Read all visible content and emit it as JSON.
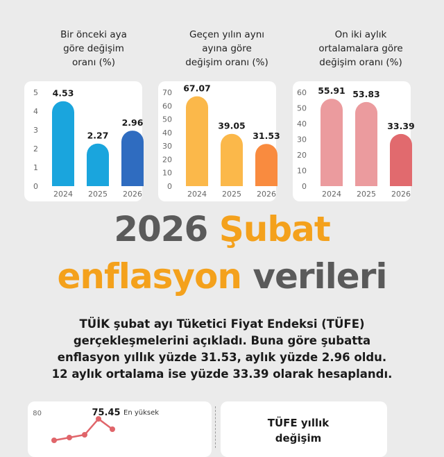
{
  "chart_data": [
    {
      "type": "bar",
      "title": "Bir önceki aya göre değişim oranı (%)",
      "title_lines": [
        "Bir önceki aya",
        "göre değişim",
        "oranı (%)"
      ],
      "categories": [
        "2024",
        "2025",
        "2026"
      ],
      "values": [
        4.53,
        2.27,
        2.96
      ],
      "value_labels": [
        "4.53",
        "2.27",
        "2.96"
      ],
      "ylim": [
        0,
        5
      ],
      "yticks": [
        "0",
        "1",
        "2",
        "3",
        "4",
        "5"
      ],
      "colors": [
        "#1aa5dd",
        "#1aa5dd",
        "#2f6cc0"
      ],
      "grid": false
    },
    {
      "type": "bar",
      "title": "Geçen yılın aynı ayına göre değişim oranı (%)",
      "title_lines": [
        "Geçen yılın aynı",
        "ayına göre",
        "değişim oranı (%)"
      ],
      "categories": [
        "2024",
        "2025",
        "2026"
      ],
      "values": [
        67.07,
        39.05,
        31.53
      ],
      "value_labels": [
        "67.07",
        "39.05",
        "31.53"
      ],
      "ylim": [
        0,
        70
      ],
      "yticks": [
        "0",
        "10",
        "20",
        "30",
        "40",
        "50",
        "60",
        "70"
      ],
      "colors": [
        "#fbb84a",
        "#fbb84a",
        "#f98b3f"
      ],
      "grid": false
    },
    {
      "type": "bar",
      "title": "On iki aylık ortalamalara göre değişim oranı (%)",
      "title_lines": [
        "On iki aylık",
        "ortalamalara göre",
        "değişim oranı (%)"
      ],
      "categories": [
        "2024",
        "2025",
        "2026"
      ],
      "values": [
        55.91,
        53.83,
        33.39
      ],
      "value_labels": [
        "55.91",
        "53.83",
        "33.39"
      ],
      "ylim": [
        0,
        60
      ],
      "yticks": [
        "0",
        "10",
        "20",
        "30",
        "40",
        "50",
        "60"
      ],
      "colors": [
        "#eb9b9e",
        "#eb9b9e",
        "#e16a6e"
      ],
      "grid": false
    },
    {
      "type": "line",
      "ylim": [
        0,
        80
      ],
      "yticks_visible": [
        "80"
      ],
      "values": [
        60,
        62,
        64,
        75.45,
        68
      ],
      "annotation_value": "75.45",
      "annotation_text": "En yüksek",
      "color": "#e0656a"
    }
  ],
  "headline": {
    "line1_part1": "2026 ",
    "line1_part2": "Şubat",
    "line2_part1": "enflasyon",
    "line2_part2": " verileri"
  },
  "summary": {
    "lines": [
      "TÜİK şubat ayı Tüketici Fiyat Endeksi (TÜFE)",
      "gerçekleşmelerini açıkladı. Buna göre şubatta",
      "enflasyon yıllık yüzde 31.53, aylık yüzde 2.96 oldu.",
      "12 aylık ortalama ise yüzde 33.39 olarak hesaplandı."
    ]
  },
  "tufe": {
    "title_lines": [
      "TÜFE yıllık",
      "değişim"
    ]
  }
}
